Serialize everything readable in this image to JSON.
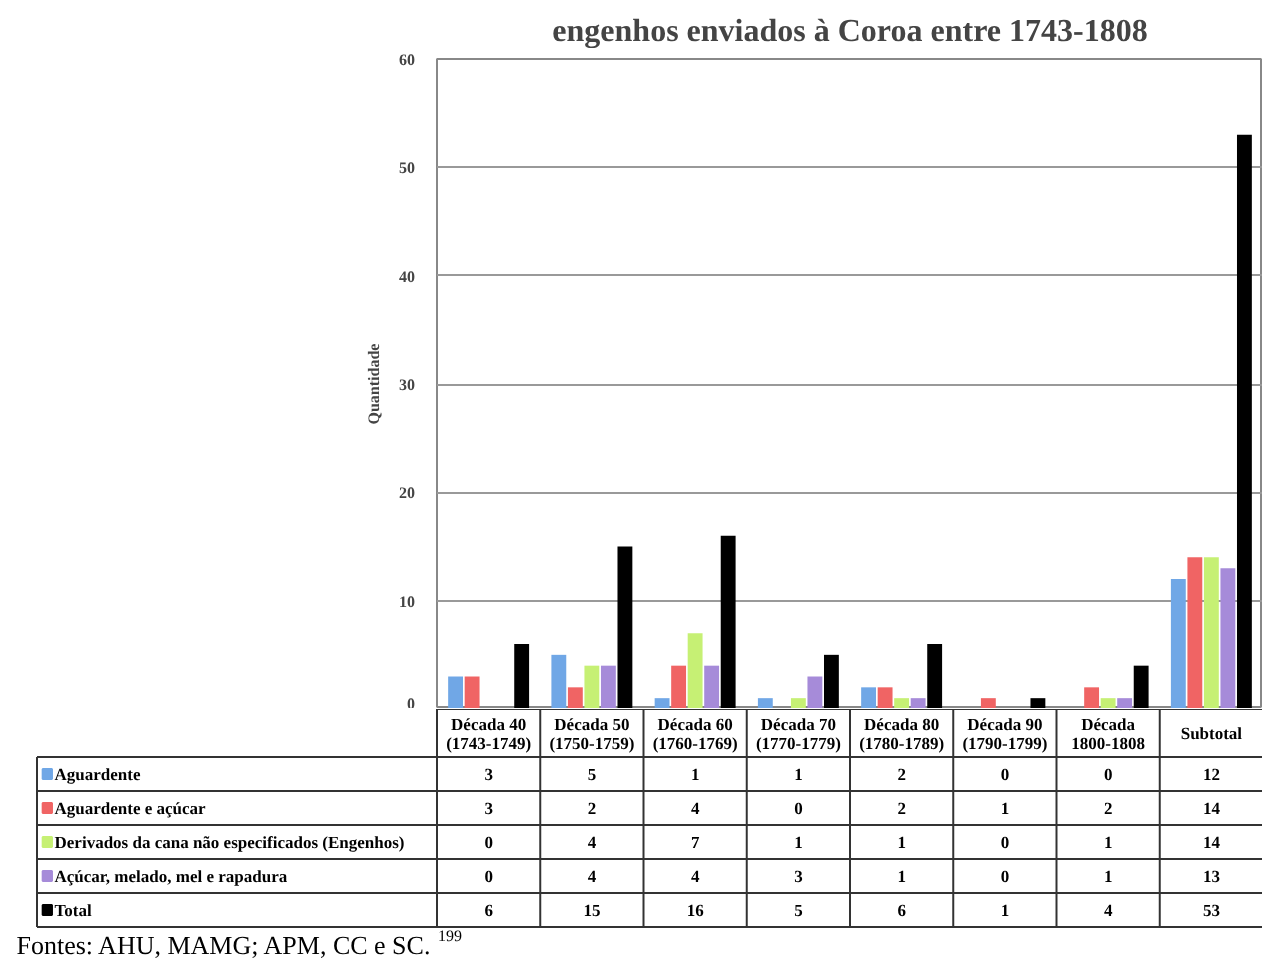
{
  "chart_data": {
    "type": "bar",
    "title": "engenhos enviados à Coroa entre 1743-1808",
    "ylabel": "Quantidade",
    "categories": [
      "Década 40\n(1743-1749)",
      "Década 50\n(1750-1759)",
      "Década 60\n(1760-1769)",
      "Década 70\n(1770-1779)",
      "Década 80\n(1780-1789)",
      "Década 90\n(1790-1799)",
      "Década\n1800-1808",
      "Subtotal"
    ],
    "series": [
      {
        "name": "Aguardente",
        "color": "#70a7e6",
        "values": [
          3,
          5,
          1,
          1,
          2,
          0,
          0,
          12
        ]
      },
      {
        "name": "Aguardente e açúcar",
        "color": "#f06464",
        "values": [
          3,
          2,
          4,
          0,
          2,
          1,
          2,
          14
        ]
      },
      {
        "name": "Derivados da cana não especificados (Engenhos)",
        "color": "#c6f074",
        "values": [
          0,
          4,
          7,
          1,
          1,
          0,
          1,
          14
        ]
      },
      {
        "name": "Açúcar, melado, mel e rapadura",
        "color": "#a68bd9",
        "values": [
          0,
          4,
          4,
          3,
          1,
          0,
          1,
          13
        ]
      },
      {
        "name": "Total",
        "color": "#000000",
        "values": [
          6,
          15,
          16,
          5,
          6,
          1,
          4,
          53
        ]
      }
    ],
    "ylim": [
      0,
      60
    ],
    "yticks": [
      0,
      10,
      20,
      30,
      40,
      50,
      60
    ],
    "grid": "y",
    "legend": "bottom",
    "data_labels": true,
    "annotations": [
      "Fontes: AHU, MAMG; APM, CC e SC. $^{199}$"
    ]
  }
}
